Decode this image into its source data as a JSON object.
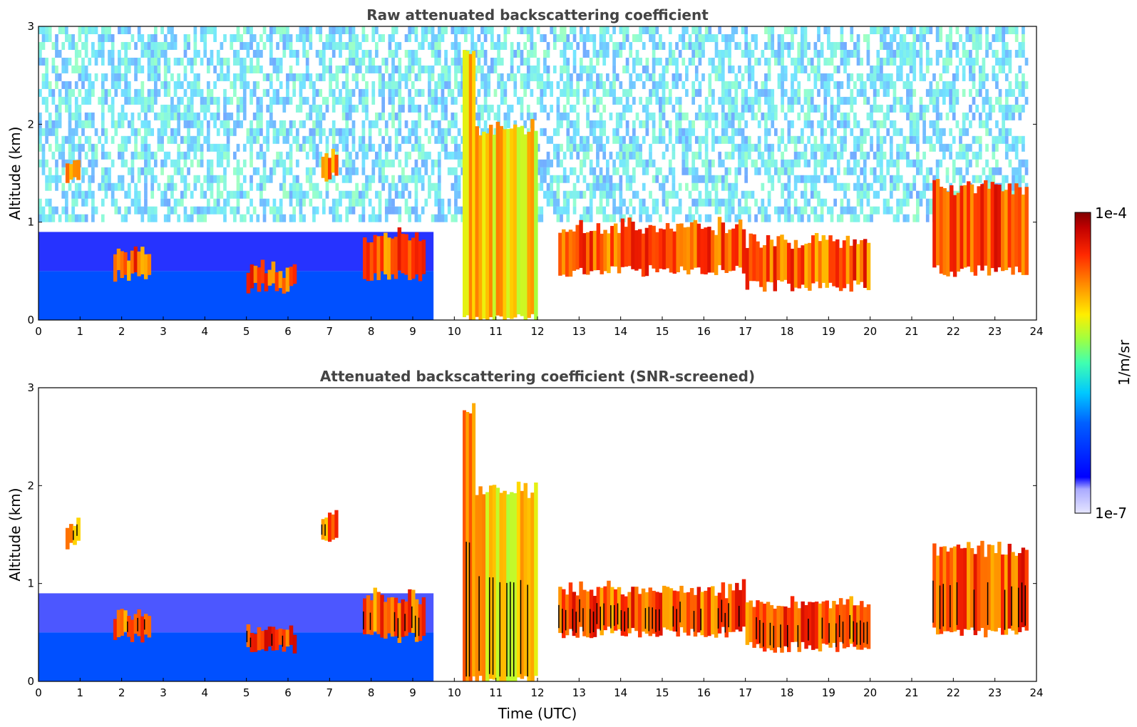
{
  "chart_data": [
    {
      "type": "heatmap",
      "title": "Raw attenuated backscattering coefficient",
      "xlabel": "",
      "ylabel": "Altitude (km)",
      "xlim": [
        0,
        24
      ],
      "ylim": [
        0,
        3
      ],
      "x_ticks": [
        "0",
        "1",
        "2",
        "3",
        "4",
        "5",
        "6",
        "7",
        "8",
        "9",
        "10",
        "11",
        "12",
        "13",
        "14",
        "15",
        "16",
        "17",
        "18",
        "19",
        "20",
        "21",
        "22",
        "23",
        "24"
      ],
      "y_ticks": [
        "0",
        "1",
        "2",
        "3"
      ],
      "grid": false,
      "screened": false,
      "features": [
        {
          "kind": "boundary-layer",
          "t0": 0,
          "t1": 9.5,
          "top_km": 0.5,
          "level": 0.28
        },
        {
          "kind": "aerosol-layer",
          "t0": 1.8,
          "t1": 2.7,
          "z0": 0.45,
          "z1": 0.65,
          "level": 0.92
        },
        {
          "kind": "aerosol-layer",
          "t0": 5.0,
          "t1": 6.2,
          "z0": 0.32,
          "z1": 0.48,
          "level": 0.95
        },
        {
          "kind": "cloud-layer",
          "t0": 0.65,
          "t1": 1.0,
          "z0": 1.4,
          "z1": 1.55,
          "level": 0.88
        },
        {
          "kind": "cloud-layer",
          "t0": 6.8,
          "t1": 7.2,
          "z0": 1.45,
          "z1": 1.65,
          "level": 0.9
        },
        {
          "kind": "cloud-layer",
          "t0": 7.8,
          "t1": 9.3,
          "z0": 0.45,
          "z1": 0.8,
          "level": 0.92
        },
        {
          "kind": "precipitation",
          "t0": 10.2,
          "t1": 10.5,
          "z0": 0.0,
          "z1": 2.7,
          "level": 0.85
        },
        {
          "kind": "precipitation",
          "t0": 10.5,
          "t1": 12.0,
          "z0": 0.0,
          "z1": 1.9,
          "level": 0.8
        },
        {
          "kind": "cloud-layer",
          "t0": 12.5,
          "t1": 17.0,
          "z0": 0.5,
          "z1": 0.9,
          "level": 0.93
        },
        {
          "kind": "cloud-layer",
          "t0": 17.0,
          "t1": 20.0,
          "z0": 0.35,
          "z1": 0.75,
          "level": 0.93
        },
        {
          "kind": "cloud-layer",
          "t0": 21.5,
          "t1": 23.8,
          "z0": 0.5,
          "z1": 1.3,
          "level": 0.94
        }
      ]
    },
    {
      "type": "heatmap",
      "title": "Attenuated backscattering coefficient (SNR-screened)",
      "xlabel": "Time (UTC)",
      "ylabel": "Altitude (km)",
      "xlim": [
        0,
        24
      ],
      "ylim": [
        0,
        3
      ],
      "x_ticks": [
        "0",
        "1",
        "2",
        "3",
        "4",
        "5",
        "6",
        "7",
        "8",
        "9",
        "10",
        "11",
        "12",
        "13",
        "14",
        "15",
        "16",
        "17",
        "18",
        "19",
        "20",
        "21",
        "22",
        "23",
        "24"
      ],
      "y_ticks": [
        "0",
        "1",
        "2",
        "3"
      ],
      "grid": false,
      "screened": true,
      "features": [
        {
          "kind": "boundary-layer",
          "t0": 0,
          "t1": 9.5,
          "top_km": 0.5,
          "level": 0.28
        },
        {
          "kind": "aerosol-layer",
          "t0": 1.8,
          "t1": 2.7,
          "z0": 0.45,
          "z1": 0.65,
          "level": 0.92
        },
        {
          "kind": "aerosol-layer",
          "t0": 5.0,
          "t1": 6.2,
          "z0": 0.32,
          "z1": 0.48,
          "level": 0.95
        },
        {
          "kind": "cloud-layer",
          "t0": 0.65,
          "t1": 1.0,
          "z0": 1.4,
          "z1": 1.55,
          "level": 0.88
        },
        {
          "kind": "cloud-layer",
          "t0": 6.8,
          "t1": 7.2,
          "z0": 1.45,
          "z1": 1.65,
          "level": 0.9
        },
        {
          "kind": "cloud-layer",
          "t0": 7.8,
          "t1": 9.3,
          "z0": 0.45,
          "z1": 0.8,
          "level": 0.92
        },
        {
          "kind": "precipitation",
          "t0": 10.2,
          "t1": 10.5,
          "z0": 0.0,
          "z1": 2.7,
          "level": 0.85
        },
        {
          "kind": "precipitation",
          "t0": 10.5,
          "t1": 12.0,
          "z0": 0.0,
          "z1": 1.9,
          "level": 0.8
        },
        {
          "kind": "cloud-layer",
          "t0": 12.5,
          "t1": 17.0,
          "z0": 0.5,
          "z1": 0.9,
          "level": 0.93
        },
        {
          "kind": "cloud-layer",
          "t0": 17.0,
          "t1": 20.0,
          "z0": 0.35,
          "z1": 0.75,
          "level": 0.93
        },
        {
          "kind": "cloud-layer",
          "t0": 21.5,
          "t1": 23.8,
          "z0": 0.5,
          "z1": 1.3,
          "level": 0.94
        }
      ]
    }
  ],
  "colorbar": {
    "max_label": "1e-4",
    "min_label": "1e-7",
    "units": "1/m/sr",
    "colormap": "jet"
  }
}
